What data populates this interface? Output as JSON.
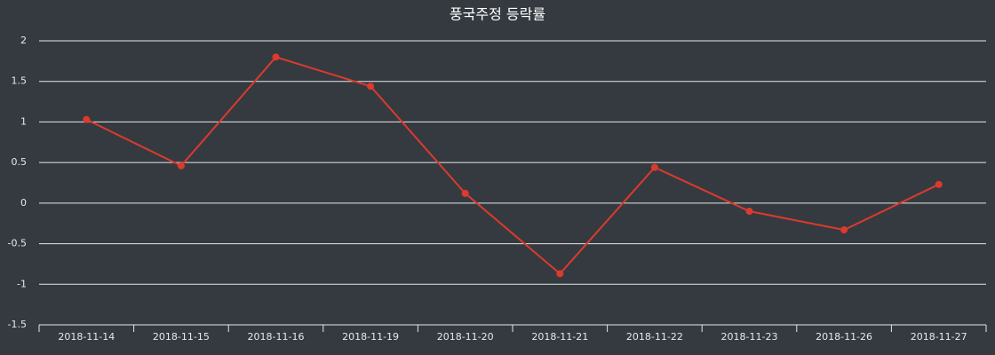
{
  "chart_data": {
    "type": "line",
    "title": "풍국주정 등락률",
    "categories": [
      "2018-11-14",
      "2018-11-15",
      "2018-11-16",
      "2018-11-19",
      "2018-11-20",
      "2018-11-21",
      "2018-11-22",
      "2018-11-23",
      "2018-11-26",
      "2018-11-27"
    ],
    "values": [
      1.03,
      0.46,
      1.8,
      1.44,
      0.12,
      -0.87,
      0.44,
      -0.1,
      -0.33,
      0.23
    ],
    "color": "#dc3a2c",
    "ylim": [
      -1.5,
      2
    ],
    "yticks": [
      -1.5,
      -1,
      -0.5,
      0,
      0.5,
      1,
      1.5,
      2
    ],
    "grid": true
  }
}
